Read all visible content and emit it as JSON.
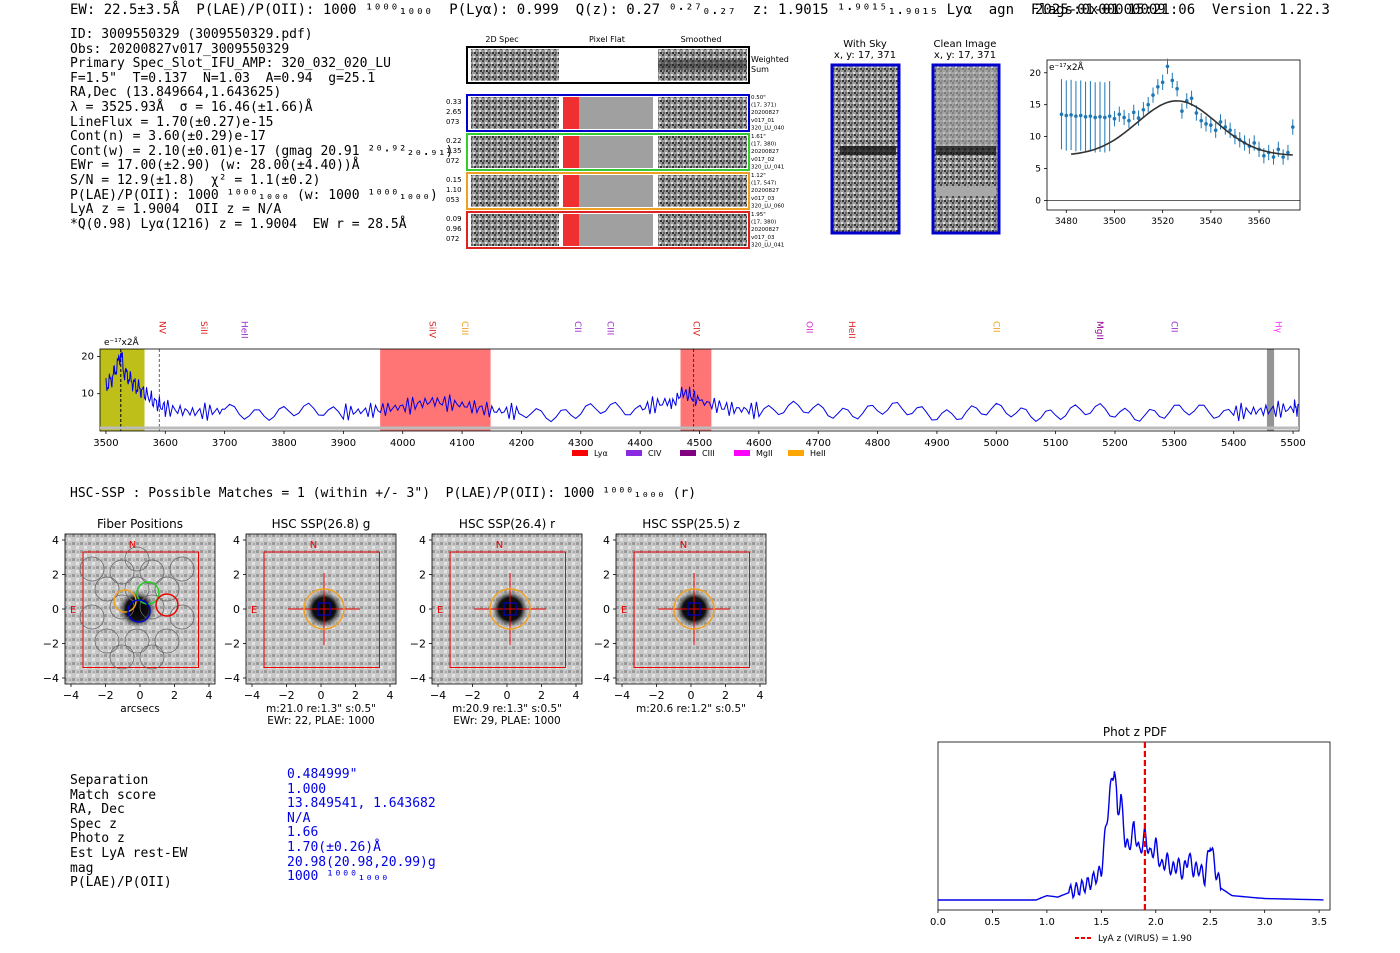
{
  "header": {
    "left": "EW: 22.5±3.5Å  P(LAE)/P(OII): 1000 ¹⁰⁰⁰₁₀₀₀  P(Lyα): 0.999  Q(z): 0.27 ⁰·²⁷₀.₂₇  z: 1.9015 ¹·⁹⁰¹⁵₁.₉₀₁₅ Lyα  agn  Flags:0x00000009",
    "right": "2025-01-01 15:21:06  Version 1.22.3"
  },
  "info": [
    "ID: 3009550329 (3009550329.pdf)",
    "Obs: 20200827v017_3009550329",
    "Primary Spec_Slot_IFU_AMP: 320_032_020_LU",
    "F=1.5\"  T=0.137  N=1.03  A=0.94  g=25.1",
    "RA,Dec (13.849664,1.643625)",
    "λ = 3525.93Å  σ = 16.46(±1.66)Å",
    "LineFlux = 1.70(±0.27)e-15",
    "Cont(n) = 3.60(±0.29)e-17",
    "Cont(w) = 2.10(±0.01)e-17 (gmag 20.91 ²⁰·⁹²₂₀.₉₁)",
    "EWr = 17.00(±2.90) (w: 28.00(±4.40))Å",
    "S/N = 12.9(±1.8)  χ² = 1.1(±0.2)",
    "P(LAE)/P(OII): 1000 ¹⁰⁰⁰₁₀₀₀ (w: 1000 ¹⁰⁰⁰₁₀₀₀)",
    "LyA z = 1.9004  OII z = N/A",
    "*Q(0.98) Lyα(1216) z = 1.9004  EW r = 28.5Å"
  ],
  "cutouts": {
    "col_titles": [
      "2D Spec",
      "Pixel Flat",
      "Smoothed"
    ],
    "weighted": "Weighted Sum",
    "rows": [
      {
        "left": [
          "0.33",
          "2.65",
          "073"
        ],
        "right": [
          "0.50\"",
          "(17, 371)",
          "20200827",
          "v017_01",
          "320_LU_040"
        ],
        "color": "#0000cc"
      },
      {
        "left": [
          "0.22",
          "1.35",
          "072"
        ],
        "right": [
          "1.61\"",
          "(17, 380)",
          "20200827",
          "v017_02",
          "320_LU_041"
        ],
        "color": "#33cc33"
      },
      {
        "left": [
          "0.15",
          "1.10",
          "053"
        ],
        "right": [
          "1.12\"",
          "(17, 547)",
          "20200827",
          "v017_03",
          "320_LU_060"
        ],
        "color": "#f0a020"
      },
      {
        "left": [
          "0.09",
          "0.96",
          "072"
        ],
        "right": [
          "1.95\"",
          "(17, 380)",
          "20200827",
          "v017_03",
          "320_LU_041"
        ],
        "color": "#dd2222"
      }
    ],
    "with_sky": "With Sky",
    "clean": "Clean Image",
    "xy": "x, y: 17, 371"
  },
  "zoom_chart": {
    "scale_label": "e⁻¹⁷x2Å"
  },
  "hsc": {
    "summary": "HSC-SSP : Possible Matches = 1 (within +/- 3\")  P(LAE)/P(OII): 1000 ¹⁰⁰⁰₁₀₀₀ (r)",
    "panels": [
      {
        "title": "Fiber Positions",
        "caption1": "arcsecs",
        "caption2": ""
      },
      {
        "title": "HSC SSP(26.8) g",
        "caption1": "m:21.0  re:1.3\"  s:0.5\"",
        "caption2": "EWr: 22, PLAE: 1000"
      },
      {
        "title": "HSC SSP(26.4) r",
        "caption1": "m:20.9  re:1.3\"  s:0.5\"",
        "caption2": "EWr: 29, PLAE: 1000"
      },
      {
        "title": "HSC SSP(25.5) z",
        "caption1": "m:20.6  re:1.2\"  s:0.5\"",
        "caption2": ""
      }
    ],
    "compass_n": "N",
    "compass_e": "E"
  },
  "match": {
    "labels": [
      "Separation",
      "Match score",
      "RA, Dec",
      "Spec z",
      "Photo z",
      "Est LyA rest-EW",
      "mag",
      "P(LAE)/P(OII)"
    ],
    "values": [
      "0.484999\"",
      "1.000",
      "13.849541, 1.643682",
      "N/A",
      "1.66",
      "1.70(±0.26)Å",
      "20.98(20.98,20.99)g",
      "1000 ¹⁰⁰⁰₁₀₀₀"
    ]
  },
  "chart_data": [
    {
      "type": "scatter",
      "title": "",
      "ylabel": "e⁻¹⁷x2Å",
      "xlim": [
        3472,
        3577
      ],
      "ylim": [
        -1.5,
        22
      ],
      "xticks": [
        3480,
        3500,
        3520,
        3540,
        3560
      ],
      "yticks": [
        0,
        5,
        10,
        15,
        20
      ],
      "series": [
        {
          "name": "data",
          "x": [
            3478,
            3480,
            3482,
            3484,
            3486,
            3488,
            3490,
            3492,
            3494,
            3496,
            3498,
            3500,
            3502,
            3504,
            3506,
            3508,
            3510,
            3512,
            3514,
            3516,
            3518,
            3520,
            3522,
            3524,
            3526,
            3528,
            3530,
            3532,
            3534,
            3536,
            3538,
            3540,
            3542,
            3544,
            3546,
            3548,
            3550,
            3552,
            3554,
            3556,
            3558,
            3560,
            3562,
            3564,
            3566,
            3568,
            3570,
            3572,
            3574
          ],
          "y": [
            13.5,
            13.3,
            13.4,
            13.2,
            13.3,
            13.1,
            13.2,
            13.0,
            13.1,
            13.0,
            13.2,
            12.8,
            13.5,
            13.0,
            12.5,
            13.8,
            12.9,
            14.2,
            15.0,
            16.5,
            17.8,
            18.5,
            21.0,
            18.8,
            17.5,
            14.0,
            15.6,
            16.0,
            13.7,
            12.5,
            12.0,
            11.8,
            11.0,
            12.3,
            11.5,
            11.0,
            10.0,
            9.5,
            9.0,
            8.5,
            9.0,
            8.0,
            7.0,
            7.5,
            6.8,
            8.0,
            6.8,
            7.5,
            11.5
          ]
        }
      ],
      "fit": {
        "name": "gaussian fit",
        "center": 3525.93,
        "amplitude": 8.6,
        "sigma": 16.46,
        "baseline": 7.0
      }
    },
    {
      "type": "line",
      "title": "",
      "ylabel": "e⁻¹⁷x2Å",
      "xlim": [
        3490,
        5510
      ],
      "ylim": [
        0,
        22
      ],
      "xticks": [
        3500,
        3600,
        3700,
        3800,
        3900,
        4000,
        4100,
        4200,
        4300,
        4400,
        4500,
        4600,
        4700,
        4800,
        4900,
        5000,
        5100,
        5200,
        5300,
        5400,
        5500
      ],
      "yticks": [
        10,
        20
      ],
      "line_labels": [
        {
          "label": "NV",
          "x": 3590,
          "color": "#dd2222"
        },
        {
          "label": "SiII",
          "x": 3660,
          "color": "#dd2222"
        },
        {
          "label": "HeII",
          "x": 3728,
          "color": "#9933cc"
        },
        {
          "label": "SiIV",
          "x": 4045,
          "color": "#dd2222"
        },
        {
          "label": "CIII",
          "x": 4100,
          "color": "#f0a020"
        },
        {
          "label": "CII",
          "x": 4290,
          "color": "#9933cc"
        },
        {
          "label": "CIII",
          "x": 4345,
          "color": "#9933cc"
        },
        {
          "label": "CIV",
          "x": 4490,
          "color": "#dd2222"
        },
        {
          "label": "OII",
          "x": 4680,
          "color": "#cc33cc"
        },
        {
          "label": "HeII",
          "x": 4752,
          "color": "#dd2222"
        },
        {
          "label": "CII",
          "x": 4995,
          "color": "#f0a020"
        },
        {
          "label": "MgII",
          "x": 5170,
          "color": "#990099"
        },
        {
          "label": "CII",
          "x": 5295,
          "color": "#9933cc"
        },
        {
          "label": "Hγ",
          "x": 5470,
          "color": "#ff33ff"
        }
      ],
      "bands": [
        {
          "x0": 3962,
          "x1": 4148,
          "color": "#ff6666"
        },
        {
          "x0": 4468,
          "x1": 4520,
          "color": "#ff6666"
        },
        {
          "x0": 3490,
          "x1": 3565,
          "color": "#b8b800"
        },
        {
          "x0": 5456,
          "x1": 5468,
          "color": "#888888"
        }
      ],
      "legend": [
        {
          "label": "Lyα",
          "color": "#ff0000"
        },
        {
          "label": "CIV",
          "color": "#8a2be2"
        },
        {
          "label": "CIII",
          "color": "#800080"
        },
        {
          "label": "MgII",
          "color": "#ff00ff"
        },
        {
          "label": "HeII",
          "color": "#ffa500"
        }
      ],
      "series": [
        {
          "name": "spectrum",
          "x": [
            3500,
            3510,
            3520,
            3525,
            3530,
            3540,
            3550,
            3560,
            3580,
            3600,
            3650,
            3700,
            3800,
            3900,
            3950,
            4000,
            4050,
            4100,
            4150,
            4200,
            4300,
            4400,
            4450,
            4480,
            4500,
            4550,
            4600,
            4700,
            4800,
            4900,
            5000,
            5100,
            5200,
            5300,
            5400,
            5450,
            5500,
            5510
          ],
          "y": [
            12,
            14,
            18,
            21,
            16,
            14,
            12,
            11,
            8,
            6,
            5,
            5.5,
            5,
            5,
            5.5,
            6.5,
            8,
            7,
            5.5,
            5,
            5,
            6,
            8,
            10,
            8,
            6,
            5.5,
            5.5,
            5.5,
            5,
            5,
            5,
            5,
            5,
            5,
            5.5,
            6,
            6.5
          ]
        }
      ]
    },
    {
      "type": "line",
      "title": "Phot z PDF",
      "xlim": [
        0.0,
        3.6
      ],
      "xticks": [
        0.0,
        0.5,
        1.0,
        1.5,
        2.0,
        2.5,
        3.0,
        3.5
      ],
      "legend": "LyA z (VIRUS) = 1.90",
      "marker_z": 1.9,
      "series": [
        {
          "name": "pdf",
          "x": [
            0.0,
            0.9,
            1.0,
            1.1,
            1.2,
            1.3,
            1.4,
            1.5,
            1.55,
            1.6,
            1.62,
            1.65,
            1.68,
            1.72,
            1.75,
            1.8,
            1.85,
            1.9,
            1.95,
            2.0,
            2.05,
            2.1,
            2.15,
            2.2,
            2.25,
            2.3,
            2.35,
            2.4,
            2.45,
            2.5,
            2.55,
            2.6,
            2.7,
            3.0,
            3.6
          ],
          "y": [
            0.0,
            0.0,
            0.03,
            0.02,
            0.05,
            0.08,
            0.12,
            0.2,
            0.55,
            0.85,
            0.9,
            0.6,
            0.7,
            0.4,
            0.35,
            0.5,
            0.32,
            0.45,
            0.3,
            0.38,
            0.22,
            0.28,
            0.2,
            0.25,
            0.18,
            0.3,
            0.2,
            0.22,
            0.15,
            0.4,
            0.2,
            0.08,
            0.03,
            0.01,
            0.0
          ]
        }
      ]
    }
  ]
}
